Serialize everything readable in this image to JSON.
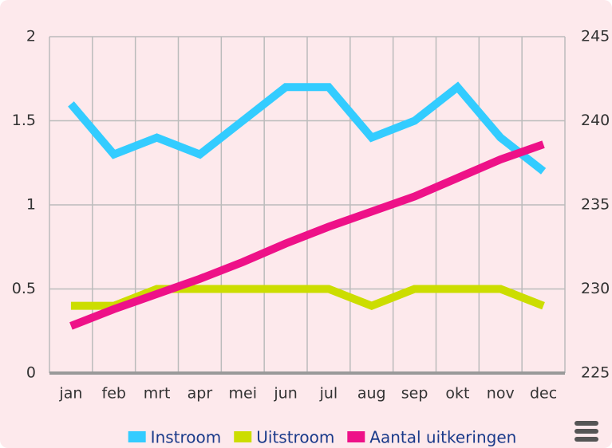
{
  "chart_data": {
    "type": "line",
    "categories": [
      "jan",
      "feb",
      "mrt",
      "apr",
      "mei",
      "jun",
      "jul",
      "aug",
      "sep",
      "okt",
      "nov",
      "dec"
    ],
    "series": [
      {
        "name": "Instroom",
        "color": "#33ccff",
        "values": [
          1.6,
          1.3,
          1.4,
          1.3,
          1.5,
          1.7,
          1.7,
          1.4,
          1.5,
          1.7,
          1.4,
          1.2
        ]
      },
      {
        "name": "Uitstroom",
        "color": "#ccdd00",
        "values": [
          0.4,
          0.4,
          0.5,
          0.5,
          0.5,
          0.5,
          0.5,
          0.4,
          0.5,
          0.5,
          0.5,
          0.4
        ]
      },
      {
        "name": "Aantal uitkeringen",
        "color": "#ee1188",
        "axis": "y2",
        "values": [
          227.8,
          228.8,
          229.7,
          230.6,
          231.6,
          232.7,
          233.7,
          234.6,
          235.5,
          236.6,
          237.7,
          238.6
        ]
      }
    ],
    "ylim": [
      0,
      2
    ],
    "yticks": [
      0,
      0.5,
      1,
      1.5,
      2
    ],
    "y2lim": [
      225,
      245
    ],
    "y2ticks": [
      225,
      230,
      235,
      240,
      245
    ],
    "grid": true,
    "legend": "bottom"
  }
}
